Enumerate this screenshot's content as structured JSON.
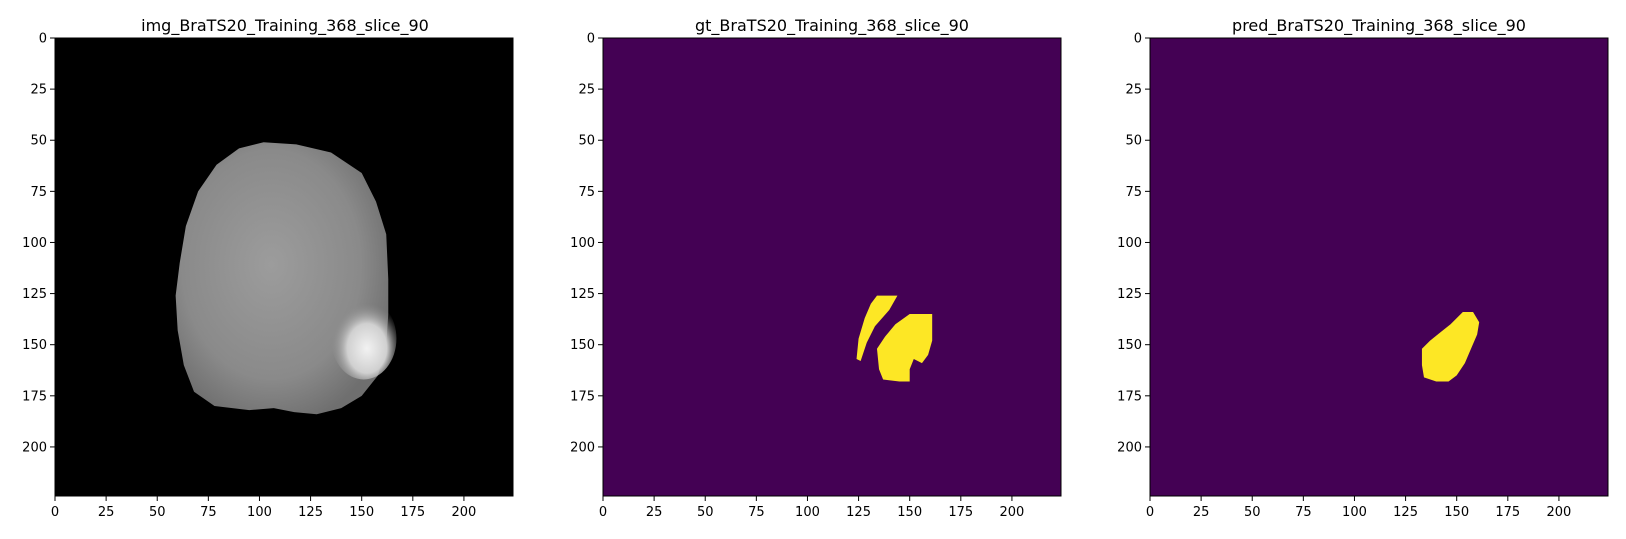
{
  "chart_data": [
    {
      "type": "image",
      "title": "img_BraTS20_Training_368_slice_90",
      "colormap": "gray",
      "xlim": [
        0,
        224
      ],
      "ylim": [
        224,
        0
      ],
      "xticks": [
        0,
        25,
        50,
        75,
        100,
        125,
        150,
        175,
        200
      ],
      "yticks": [
        0,
        25,
        50,
        75,
        100,
        125,
        150,
        175,
        200
      ],
      "xticklabels": [
        "0",
        "25",
        "50",
        "75",
        "100",
        "125",
        "150",
        "175",
        "200"
      ],
      "yticklabels": [
        "0",
        "25",
        "50",
        "75",
        "100",
        "125",
        "150",
        "175",
        "200"
      ],
      "content": "axial FLAIR brain MRI slice",
      "background_color": "#000000",
      "brain_outline": [
        [
          102,
          51
        ],
        [
          118,
          52
        ],
        [
          135,
          56
        ],
        [
          150,
          66
        ],
        [
          157,
          80
        ],
        [
          162,
          96
        ],
        [
          163,
          118
        ],
        [
          163,
          135
        ],
        [
          162,
          150
        ],
        [
          158,
          165
        ],
        [
          150,
          175
        ],
        [
          140,
          181
        ],
        [
          128,
          184
        ],
        [
          117,
          183
        ],
        [
          107,
          181
        ],
        [
          95,
          182
        ],
        [
          78,
          180
        ],
        [
          68,
          173
        ],
        [
          63,
          160
        ],
        [
          60,
          143
        ],
        [
          59,
          126
        ],
        [
          61,
          110
        ],
        [
          64,
          92
        ],
        [
          70,
          75
        ],
        [
          79,
          62
        ],
        [
          90,
          54
        ]
      ],
      "lesion_center": [
        151,
        147
      ],
      "lesion_radius": [
        16,
        20
      ]
    },
    {
      "type": "image",
      "title": "gt_BraTS20_Training_368_slice_90",
      "colormap": "viridis",
      "xlim": [
        0,
        224
      ],
      "ylim": [
        224,
        0
      ],
      "xticks": [
        0,
        25,
        50,
        75,
        100,
        125,
        150,
        175,
        200
      ],
      "yticks": [
        0,
        25,
        50,
        75,
        100,
        125,
        150,
        175,
        200
      ],
      "xticklabels": [
        "0",
        "25",
        "50",
        "75",
        "100",
        "125",
        "150",
        "175",
        "200"
      ],
      "yticklabels": [
        "0",
        "25",
        "50",
        "75",
        "100",
        "125",
        "150",
        "175",
        "200"
      ],
      "background_color": "#440154",
      "mask_color": "#fde725",
      "mask_regions": [
        [
          [
            134,
            126
          ],
          [
            144,
            126
          ],
          [
            140,
            133
          ],
          [
            133,
            141
          ],
          [
            129,
            149
          ],
          [
            126,
            158
          ],
          [
            124,
            157
          ],
          [
            125,
            147
          ],
          [
            128,
            137
          ],
          [
            131,
            130
          ]
        ],
        [
          [
            150,
            135
          ],
          [
            161,
            135
          ],
          [
            161,
            148
          ],
          [
            159,
            155
          ],
          [
            156,
            159
          ],
          [
            152,
            157
          ],
          [
            150,
            162
          ],
          [
            150,
            168
          ],
          [
            145,
            168
          ],
          [
            137,
            167
          ],
          [
            135,
            162
          ],
          [
            134,
            152
          ],
          [
            138,
            146
          ],
          [
            143,
            140
          ]
        ]
      ]
    },
    {
      "type": "image",
      "title": "pred_BraTS20_Training_368_slice_90",
      "colormap": "viridis",
      "xlim": [
        0,
        224
      ],
      "ylim": [
        224,
        0
      ],
      "xticks": [
        0,
        25,
        50,
        75,
        100,
        125,
        150,
        175,
        200
      ],
      "yticks": [
        0,
        25,
        50,
        75,
        100,
        125,
        150,
        175,
        200
      ],
      "xticklabels": [
        "0",
        "25",
        "50",
        "75",
        "100",
        "125",
        "150",
        "175",
        "200"
      ],
      "yticklabels": [
        "0",
        "25",
        "50",
        "75",
        "100",
        "125",
        "150",
        "175",
        "200"
      ],
      "background_color": "#440154",
      "mask_color": "#fde725",
      "mask_regions": [
        [
          [
            153,
            134
          ],
          [
            158,
            134
          ],
          [
            161,
            139
          ],
          [
            160,
            145
          ],
          [
            157,
            152
          ],
          [
            154,
            159
          ],
          [
            150,
            165
          ],
          [
            146,
            168
          ],
          [
            140,
            168
          ],
          [
            134,
            166
          ],
          [
            133,
            160
          ],
          [
            133,
            152
          ],
          [
            137,
            148
          ],
          [
            142,
            144
          ],
          [
            147,
            140
          ]
        ]
      ]
    }
  ]
}
